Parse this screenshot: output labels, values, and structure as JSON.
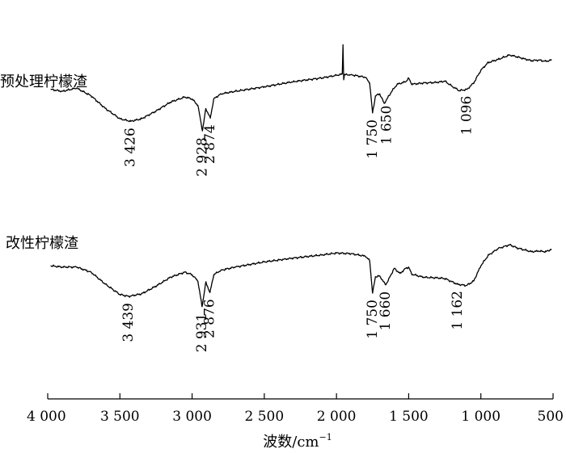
{
  "chart_data": {
    "type": "line",
    "xlabel": "波数/cm",
    "xlabel_superscript": "−1",
    "xlim": [
      4000,
      500
    ],
    "x_ticks": [
      4000,
      3500,
      3000,
      2500,
      2000,
      1500,
      1000,
      500
    ],
    "x_tick_labels": [
      "4 000",
      "3 500",
      "3 000",
      "2 500",
      "2 000",
      "1 500",
      "1 000",
      "500"
    ],
    "grid": false,
    "series": [
      {
        "name": "预处理柠檬渣",
        "points": [
          [
            3980,
            70
          ],
          [
            3900,
            67
          ],
          [
            3800,
            72
          ],
          [
            3700,
            60
          ],
          [
            3600,
            40
          ],
          [
            3500,
            24
          ],
          [
            3426,
            20
          ],
          [
            3350,
            24
          ],
          [
            3250,
            36
          ],
          [
            3150,
            50
          ],
          [
            3050,
            58
          ],
          [
            3000,
            55
          ],
          [
            2960,
            45
          ],
          [
            2928,
            5
          ],
          [
            2905,
            40
          ],
          [
            2874,
            25
          ],
          [
            2850,
            55
          ],
          [
            2800,
            63
          ],
          [
            2700,
            67
          ],
          [
            2500,
            74
          ],
          [
            2300,
            82
          ],
          [
            2100,
            88
          ],
          [
            2000,
            92
          ],
          [
            1960,
            94
          ],
          [
            1955,
            140
          ],
          [
            1950,
            85
          ],
          [
            1945,
            93
          ],
          [
            1900,
            93
          ],
          [
            1800,
            89
          ],
          [
            1770,
            80
          ],
          [
            1750,
            33
          ],
          [
            1730,
            60
          ],
          [
            1700,
            63
          ],
          [
            1670,
            48
          ],
          [
            1650,
            55
          ],
          [
            1620,
            66
          ],
          [
            1580,
            78
          ],
          [
            1520,
            82
          ],
          [
            1500,
            88
          ],
          [
            1480,
            78
          ],
          [
            1400,
            80
          ],
          [
            1300,
            81
          ],
          [
            1250,
            83
          ],
          [
            1200,
            75
          ],
          [
            1150,
            68
          ],
          [
            1096,
            70
          ],
          [
            1050,
            80
          ],
          [
            1000,
            100
          ],
          [
            950,
            112
          ],
          [
            880,
            117
          ],
          [
            800,
            124
          ],
          [
            750,
            121
          ],
          [
            700,
            118
          ],
          [
            650,
            115
          ],
          [
            600,
            116
          ],
          [
            550,
            114
          ],
          [
            510,
            116
          ]
        ]
      },
      {
        "name": "改性柠檬渣",
        "points": [
          [
            3980,
            72
          ],
          [
            3900,
            70
          ],
          [
            3800,
            70
          ],
          [
            3700,
            62
          ],
          [
            3600,
            43
          ],
          [
            3500,
            27
          ],
          [
            3439,
            24
          ],
          [
            3350,
            28
          ],
          [
            3250,
            40
          ],
          [
            3150,
            54
          ],
          [
            3050,
            62
          ],
          [
            3000,
            58
          ],
          [
            2960,
            48
          ],
          [
            2931,
            8
          ],
          [
            2905,
            46
          ],
          [
            2876,
            30
          ],
          [
            2850,
            58
          ],
          [
            2800,
            65
          ],
          [
            2700,
            70
          ],
          [
            2500,
            78
          ],
          [
            2300,
            84
          ],
          [
            2100,
            89
          ],
          [
            2000,
            92
          ],
          [
            1900,
            91
          ],
          [
            1800,
            87
          ],
          [
            1770,
            80
          ],
          [
            1750,
            29
          ],
          [
            1730,
            55
          ],
          [
            1700,
            56
          ],
          [
            1660,
            42
          ],
          [
            1640,
            50
          ],
          [
            1600,
            68
          ],
          [
            1560,
            60
          ],
          [
            1520,
            68
          ],
          [
            1500,
            70
          ],
          [
            1480,
            59
          ],
          [
            1400,
            54
          ],
          [
            1300,
            53
          ],
          [
            1250,
            52
          ],
          [
            1200,
            47
          ],
          [
            1162,
            43
          ],
          [
            1100,
            41
          ],
          [
            1050,
            48
          ],
          [
            1000,
            72
          ],
          [
            950,
            88
          ],
          [
            880,
            99
          ],
          [
            800,
            105
          ],
          [
            750,
            100
          ],
          [
            700,
            97
          ],
          [
            650,
            94
          ],
          [
            600,
            95
          ],
          [
            550,
            94
          ],
          [
            510,
            98
          ]
        ]
      }
    ],
    "annotations": [
      {
        "series": 0,
        "x": 3426,
        "label": "3 426"
      },
      {
        "series": 0,
        "x": 2928,
        "label": "2 928"
      },
      {
        "series": 0,
        "x": 2874,
        "label": "2 874"
      },
      {
        "series": 0,
        "x": 1750,
        "label": "1 750"
      },
      {
        "series": 0,
        "x": 1650,
        "label": "1 650"
      },
      {
        "series": 0,
        "x": 1096,
        "label": "1 096"
      },
      {
        "series": 1,
        "x": 3439,
        "label": "3 439"
      },
      {
        "series": 1,
        "x": 2931,
        "label": "2 931"
      },
      {
        "series": 1,
        "x": 2876,
        "label": "2 876"
      },
      {
        "series": 1,
        "x": 1750,
        "label": "1 750"
      },
      {
        "series": 1,
        "x": 1660,
        "label": "1 660"
      },
      {
        "series": 1,
        "x": 1162,
        "label": "1 162"
      }
    ]
  }
}
